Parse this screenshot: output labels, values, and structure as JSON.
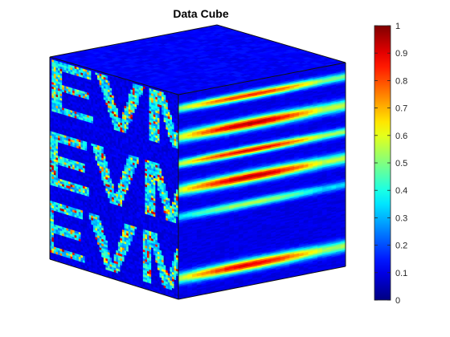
{
  "chart_data": {
    "type": "volume-slice-cube",
    "title": "Data Cube",
    "colormap": "jet",
    "clim": [
      0,
      1
    ],
    "colorbar": {
      "placement": "right",
      "ticks": [
        0,
        0.1,
        0.2,
        0.3,
        0.4,
        0.5,
        0.6,
        0.7,
        0.8,
        0.9,
        1
      ],
      "tick_labels": [
        "0",
        "0.1",
        "0.2",
        "0.3",
        "0.4",
        "0.5",
        "0.6",
        "0.7",
        "0.8",
        "0.9",
        "1"
      ]
    },
    "faces": {
      "top": {
        "base_value": 0.12
      },
      "front": {
        "base_value": 0.1,
        "text_pattern": "EVM",
        "text_value_mean": 0.35,
        "text_value_max": 0.95
      },
      "side": {
        "base_value": 0.1,
        "band_positions": [
          0.07,
          0.21,
          0.34,
          0.47,
          0.6,
          0.9
        ],
        "band_peak_values": [
          0.75,
          0.85,
          0.8,
          0.85,
          0.45,
          0.8
        ]
      }
    }
  }
}
